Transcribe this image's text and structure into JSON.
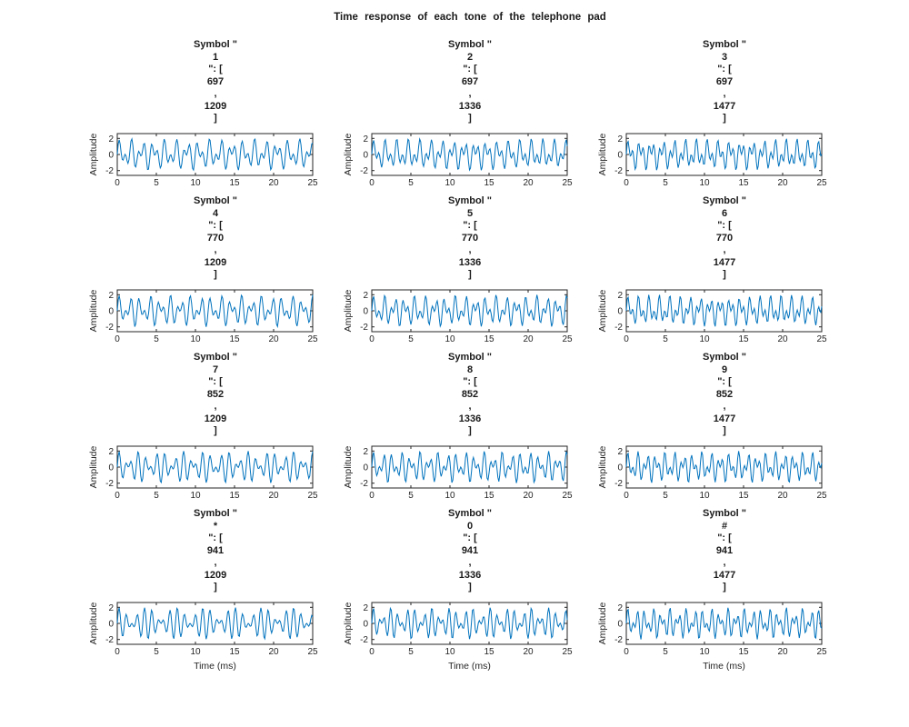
{
  "figure": {
    "title": "Time response of each tone of the telephone pad"
  },
  "axes": {
    "ylabel": "Amplitude",
    "xlabel": "Time (ms)",
    "x_ticks": [
      0,
      5,
      10,
      15,
      20,
      25
    ],
    "y_ticks": [
      -2,
      0,
      2
    ],
    "x_range_ms": [
      0,
      25
    ],
    "y_range": [
      -2.6,
      2.6
    ],
    "sample_rate_hz": 8000,
    "line_color": "#0072BD",
    "axis_color": "#262626"
  },
  "subplot_title_format": {
    "prefix": "Symbol \"",
    "mid": "\": [",
    "comma": ",",
    "suffix": "]"
  },
  "chart_data": {
    "type": "line",
    "title": "Time response of each tone of the telephone pad",
    "xlabel": "Time (ms)",
    "ylabel": "Amplitude",
    "xlim": [
      0,
      25
    ],
    "ylim": [
      -2.6,
      2.6
    ],
    "x_ticks": [
      0,
      5,
      10,
      15,
      20,
      25
    ],
    "y_ticks": [
      -2,
      0,
      2
    ],
    "layout": {
      "rows": 4,
      "cols": 3
    },
    "signal": "y(t) = sin(2*pi*f_low*t) + sin(2*pi*f_high*t), t in ms, sampled at 8 kHz over 0-25 ms",
    "subplots": [
      {
        "symbol": "1",
        "low_hz": 697,
        "high_hz": 1209
      },
      {
        "symbol": "2",
        "low_hz": 697,
        "high_hz": 1336
      },
      {
        "symbol": "3",
        "low_hz": 697,
        "high_hz": 1477
      },
      {
        "symbol": "4",
        "low_hz": 770,
        "high_hz": 1209
      },
      {
        "symbol": "5",
        "low_hz": 770,
        "high_hz": 1336
      },
      {
        "symbol": "6",
        "low_hz": 770,
        "high_hz": 1477
      },
      {
        "symbol": "7",
        "low_hz": 852,
        "high_hz": 1209
      },
      {
        "symbol": "8",
        "low_hz": 852,
        "high_hz": 1336
      },
      {
        "symbol": "9",
        "low_hz": 852,
        "high_hz": 1477
      },
      {
        "symbol": "*",
        "low_hz": 941,
        "high_hz": 1209
      },
      {
        "symbol": "0",
        "low_hz": 941,
        "high_hz": 1336
      },
      {
        "symbol": "#",
        "low_hz": 941,
        "high_hz": 1477
      }
    ]
  }
}
